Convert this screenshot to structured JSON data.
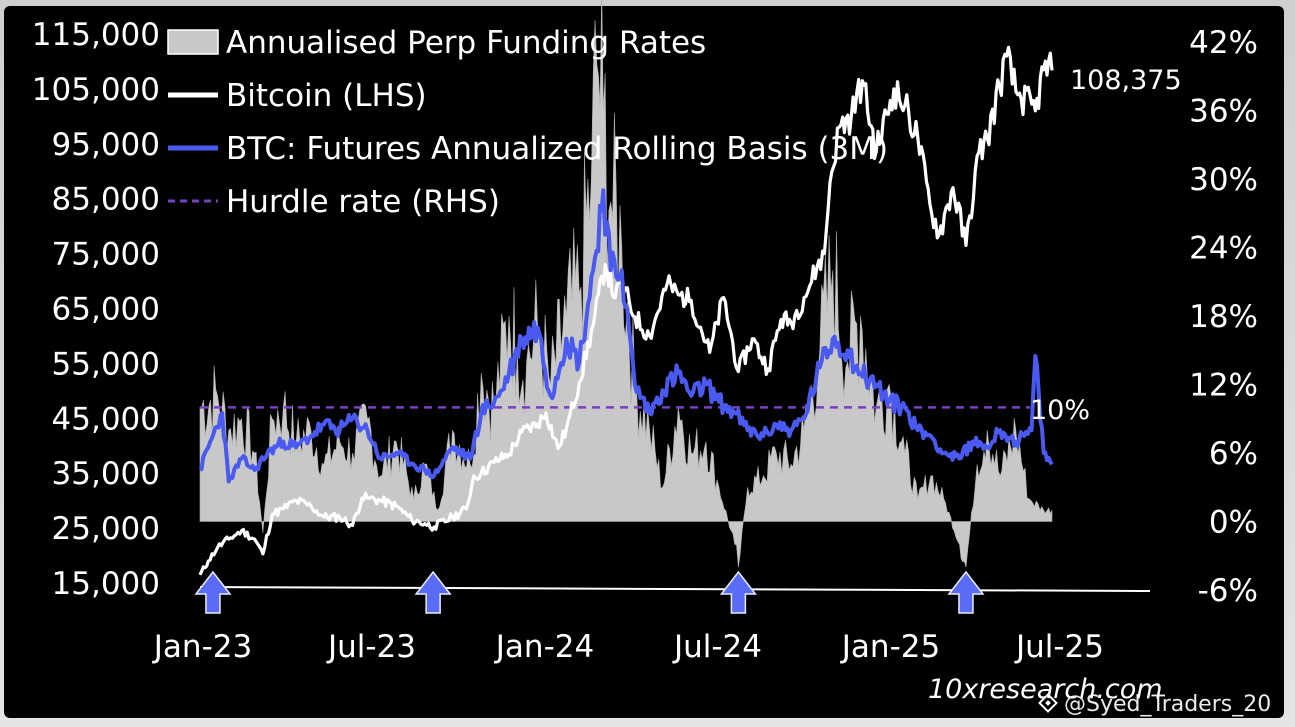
{
  "chart_data": {
    "type": "line",
    "legend": [
      {
        "label": "Annualised Perp Funding Rates",
        "style": "bar",
        "color": "#c8c8c8"
      },
      {
        "label": "Bitcoin (LHS)",
        "style": "line",
        "color": "#ffffff"
      },
      {
        "label": "BTC: Futures Annualized Rolling Basis (3M)",
        "style": "line",
        "color": "#4a5af0"
      },
      {
        "label": "Hurdle rate (RHS)",
        "style": "dashed",
        "color": "#7b3fc4"
      }
    ],
    "legend_position": "top-left",
    "x_ticks": [
      "Jan-23",
      "Jul-23",
      "Jan-24",
      "Jul-24",
      "Jan-25",
      "Jul-25"
    ],
    "y_left": {
      "ticks": [
        "115,000",
        "105,000",
        "95,000",
        "85,000",
        "75,000",
        "65,000",
        "55,000",
        "45,000",
        "35,000",
        "25,000",
        "15,000"
      ],
      "range": [
        15000,
        115000
      ]
    },
    "y_right": {
      "ticks": [
        "42%",
        "36%",
        "30%",
        "24%",
        "18%",
        "12%",
        "6%",
        "0%",
        "-6%"
      ],
      "range": [
        -6,
        42
      ]
    },
    "x_range": [
      "2023-01-01",
      "2025-07-10"
    ],
    "annotations": {
      "last_price": "108,375",
      "hurdle": "10%"
    },
    "marker_dates": [
      "2023-01-15",
      "2023-09-10",
      "2024-08-05",
      "2025-04-08"
    ],
    "bitcoin": {
      "name": "Bitcoin (LHS)",
      "x": [
        "2023-01-01",
        "2023-01-10",
        "2023-01-20",
        "2023-02-01",
        "2023-02-15",
        "2023-03-01",
        "2023-03-10",
        "2023-03-20",
        "2023-04-01",
        "2023-04-15",
        "2023-05-01",
        "2023-05-15",
        "2023-06-01",
        "2023-06-15",
        "2023-06-25",
        "2023-07-01",
        "2023-07-15",
        "2023-08-01",
        "2023-08-18",
        "2023-09-01",
        "2023-09-11",
        "2023-10-01",
        "2023-10-16",
        "2023-10-24",
        "2023-11-01",
        "2023-11-15",
        "2023-12-01",
        "2023-12-15",
        "2024-01-01",
        "2024-01-10",
        "2024-01-23",
        "2024-02-01",
        "2024-02-15",
        "2024-03-01",
        "2024-03-14",
        "2024-03-25",
        "2024-04-01",
        "2024-04-15",
        "2024-05-01",
        "2024-05-20",
        "2024-06-01",
        "2024-06-15",
        "2024-07-05",
        "2024-07-20",
        "2024-08-05",
        "2024-08-20",
        "2024-09-06",
        "2024-09-20",
        "2024-10-01",
        "2024-10-15",
        "2024-10-29",
        "2024-11-06",
        "2024-11-12",
        "2024-11-22",
        "2024-12-05",
        "2024-12-17",
        "2025-01-01",
        "2025-01-20",
        "2025-02-01",
        "2025-02-15",
        "2025-02-28",
        "2025-03-10",
        "2025-03-25",
        "2025-04-08",
        "2025-04-22",
        "2025-05-01",
        "2025-05-22",
        "2025-06-01",
        "2025-06-22",
        "2025-07-01",
        "2025-07-10"
      ],
      "values": [
        16500,
        19000,
        21500,
        23000,
        24500,
        23000,
        20300,
        27500,
        28500,
        30000,
        29000,
        27000,
        27000,
        25500,
        30500,
        30500,
        30000,
        29000,
        26500,
        25800,
        25200,
        27000,
        28500,
        34500,
        35000,
        37000,
        38500,
        42500,
        44000,
        46000,
        39500,
        43000,
        51500,
        62000,
        73000,
        67000,
        69500,
        63500,
        60000,
        69500,
        67500,
        66500,
        57000,
        67000,
        53500,
        59500,
        54000,
        63000,
        62500,
        67000,
        72500,
        75000,
        88000,
        98000,
        100000,
        106500,
        93500,
        105000,
        102000,
        96000,
        84000,
        78500,
        87000,
        76500,
        93500,
        96000,
        111000,
        104500,
        101000,
        108500,
        108375
      ]
    },
    "basis": {
      "name": "BTC: Futures Annualized Rolling Basis (3M)",
      "x": [
        "2023-01-01",
        "2023-01-10",
        "2023-01-25",
        "2023-02-01",
        "2023-02-15",
        "2023-03-01",
        "2023-03-15",
        "2023-04-01",
        "2023-04-15",
        "2023-05-01",
        "2023-05-15",
        "2023-06-01",
        "2023-06-15",
        "2023-07-01",
        "2023-07-15",
        "2023-08-01",
        "2023-08-20",
        "2023-09-01",
        "2023-09-11",
        "2023-10-01",
        "2023-10-20",
        "2023-11-01",
        "2023-11-20",
        "2023-12-01",
        "2023-12-15",
        "2024-01-01",
        "2024-01-15",
        "2024-02-01",
        "2024-02-15",
        "2024-03-01",
        "2024-03-12",
        "2024-03-20",
        "2024-04-01",
        "2024-04-15",
        "2024-05-01",
        "2024-05-15",
        "2024-06-01",
        "2024-06-15",
        "2024-07-01",
        "2024-07-15",
        "2024-08-01",
        "2024-08-15",
        "2024-09-01",
        "2024-09-15",
        "2024-10-01",
        "2024-10-15",
        "2024-11-01",
        "2024-11-15",
        "2024-12-01",
        "2024-12-15",
        "2025-01-01",
        "2025-01-15",
        "2025-02-01",
        "2025-02-15",
        "2025-03-01",
        "2025-03-15",
        "2025-04-01",
        "2025-04-15",
        "2025-05-01",
        "2025-05-15",
        "2025-06-01",
        "2025-06-10",
        "2025-06-18",
        "2025-06-22",
        "2025-07-01",
        "2025-07-10"
      ],
      "values": [
        4.5,
        6.5,
        9.5,
        3.5,
        5.5,
        4.5,
        6.0,
        7.0,
        6.5,
        7.5,
        8.5,
        8.0,
        9.0,
        8.0,
        5.5,
        6.0,
        5.0,
        4.5,
        4.0,
        6.5,
        5.5,
        9.5,
        11.0,
        13.0,
        16.0,
        17.0,
        11.0,
        16.0,
        14.0,
        22.0,
        29.0,
        22.0,
        22.0,
        12.0,
        9.5,
        11.5,
        13.0,
        11.0,
        12.0,
        10.5,
        9.5,
        8.0,
        7.5,
        8.5,
        8.0,
        9.0,
        13.5,
        16.0,
        15.0,
        13.0,
        12.0,
        10.5,
        10.0,
        8.0,
        7.5,
        6.0,
        5.5,
        7.0,
        6.5,
        8.0,
        7.0,
        7.5,
        8.0,
        14.5,
        6.0,
        5.0
      ]
    },
    "funding": {
      "name": "Annualised Perp Funding Rates",
      "x": [
        "2023-01-01",
        "2023-01-20",
        "2023-02-01",
        "2023-02-15",
        "2023-03-01",
        "2023-03-10",
        "2023-03-20",
        "2023-04-01",
        "2023-04-15",
        "2023-05-01",
        "2023-05-15",
        "2023-06-01",
        "2023-06-15",
        "2023-07-01",
        "2023-07-15",
        "2023-08-01",
        "2023-08-20",
        "2023-09-01",
        "2023-09-15",
        "2023-10-01",
        "2023-10-20",
        "2023-11-01",
        "2023-11-15",
        "2023-12-01",
        "2023-12-10",
        "2023-12-20",
        "2024-01-01",
        "2024-01-15",
        "2024-02-01",
        "2024-02-15",
        "2024-02-28",
        "2024-03-05",
        "2024-03-12",
        "2024-03-20",
        "2024-04-01",
        "2024-04-15",
        "2024-05-01",
        "2024-05-15",
        "2024-06-01",
        "2024-06-15",
        "2024-07-01",
        "2024-07-15",
        "2024-08-01",
        "2024-08-05",
        "2024-08-15",
        "2024-09-01",
        "2024-09-15",
        "2024-10-01",
        "2024-10-15",
        "2024-11-01",
        "2024-11-15",
        "2024-12-01",
        "2024-12-15",
        "2025-01-01",
        "2025-01-15",
        "2025-02-01",
        "2025-02-15",
        "2025-03-01",
        "2025-03-15",
        "2025-04-01",
        "2025-04-08",
        "2025-04-20",
        "2025-05-01",
        "2025-05-15",
        "2025-06-01",
        "2025-06-15",
        "2025-07-01",
        "2025-07-10"
      ],
      "values": [
        10,
        11,
        8,
        9,
        6,
        -1,
        9,
        10,
        7,
        8,
        5,
        7,
        6,
        9,
        4,
        7,
        2,
        5,
        1,
        8,
        5,
        13,
        10,
        18,
        15,
        14,
        17,
        12,
        18,
        20,
        30,
        40,
        36,
        28,
        24,
        12,
        8,
        3,
        10,
        6,
        7,
        3,
        -2,
        -4,
        3,
        4,
        6,
        5,
        8,
        15,
        22,
        14,
        18,
        10,
        12,
        6,
        2,
        4,
        2,
        -2,
        -4,
        5,
        8,
        4,
        8,
        2,
        1,
        1
      ]
    },
    "hurdle": {
      "name": "Hurdle rate (RHS)",
      "value": 10
    }
  },
  "watermark": {
    "brand": "10xresearch.com",
    "user": "@Syed_Traders_20",
    "logo": "Binance"
  }
}
